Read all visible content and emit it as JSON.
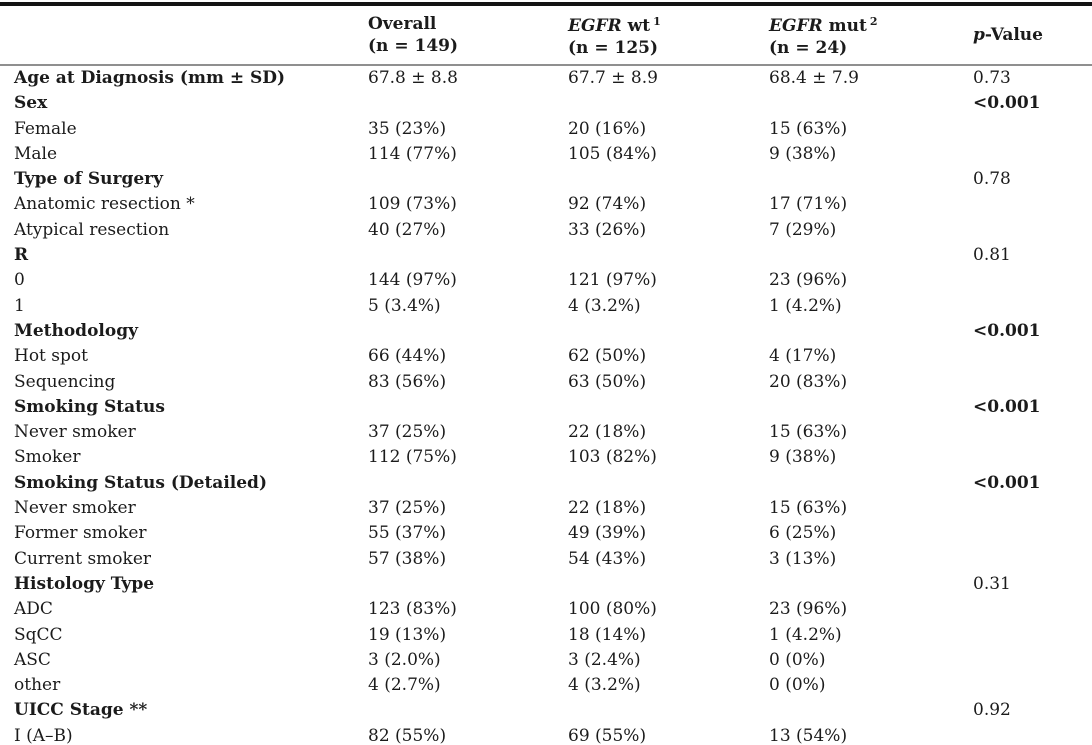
{
  "colors": {
    "text": "#1b1b1b",
    "top_rule": "#131313",
    "header_rule": "#8f8f8f",
    "background": "#ffffff"
  },
  "header": {
    "overall": {
      "line1": "Overall",
      "line2": "(n = 149)"
    },
    "egfr_wt": {
      "gene": "EGFR",
      "type": "wt",
      "sup": "1",
      "n": "(n = 125)"
    },
    "egfr_mut": {
      "gene": "EGFR",
      "type": "mut",
      "sup": "2",
      "n": "(n = 24)"
    },
    "p_value": {
      "p": "p",
      "rest": "-Value"
    }
  },
  "table": {
    "rows": [
      {
        "label": "Age at Diagnosis (mm ± SD)",
        "bold": true,
        "overall": "67.8 ± 8.8",
        "wt": "67.7 ± 8.9",
        "mut": "68.4 ± 7.9",
        "p": "0.73",
        "p_bold": false
      },
      {
        "label": "Sex",
        "bold": true,
        "overall": "",
        "wt": "",
        "mut": "",
        "p": "<0.001",
        "p_bold": true
      },
      {
        "label": "Female",
        "bold": false,
        "overall": "35 (23%)",
        "wt": "20 (16%)",
        "mut": "15 (63%)",
        "p": "",
        "p_bold": false
      },
      {
        "label": "Male",
        "bold": false,
        "overall": "114 (77%)",
        "wt": "105 (84%)",
        "mut": "9 (38%)",
        "p": "",
        "p_bold": false
      },
      {
        "label": "Type of Surgery",
        "bold": true,
        "overall": "",
        "wt": "",
        "mut": "",
        "p": "0.78",
        "p_bold": false
      },
      {
        "label": "Anatomic resection *",
        "bold": false,
        "overall": "109 (73%)",
        "wt": "92 (74%)",
        "mut": "17 (71%)",
        "p": "",
        "p_bold": false
      },
      {
        "label": "Atypical resection",
        "bold": false,
        "overall": "40 (27%)",
        "wt": "33 (26%)",
        "mut": "7 (29%)",
        "p": "",
        "p_bold": false
      },
      {
        "label": "R",
        "bold": true,
        "overall": "",
        "wt": "",
        "mut": "",
        "p": "0.81",
        "p_bold": false
      },
      {
        "label": "0",
        "bold": false,
        "overall": "144 (97%)",
        "wt": "121 (97%)",
        "mut": "23 (96%)",
        "p": "",
        "p_bold": false
      },
      {
        "label": "1",
        "bold": false,
        "overall": "5 (3.4%)",
        "wt": "4 (3.2%)",
        "mut": "1 (4.2%)",
        "p": "",
        "p_bold": false
      },
      {
        "label": "Methodology",
        "bold": true,
        "overall": "",
        "wt": "",
        "mut": "",
        "p": "<0.001",
        "p_bold": true
      },
      {
        "label": "Hot spot",
        "bold": false,
        "overall": "66 (44%)",
        "wt": "62 (50%)",
        "mut": "4 (17%)",
        "p": "",
        "p_bold": false
      },
      {
        "label": "Sequencing",
        "bold": false,
        "overall": "83 (56%)",
        "wt": "63 (50%)",
        "mut": "20 (83%)",
        "p": "",
        "p_bold": false
      },
      {
        "label": "Smoking Status",
        "bold": true,
        "overall": "",
        "wt": "",
        "mut": "",
        "p": "<0.001",
        "p_bold": true
      },
      {
        "label": "Never smoker",
        "bold": false,
        "overall": "37 (25%)",
        "wt": "22 (18%)",
        "mut": "15 (63%)",
        "p": "",
        "p_bold": false
      },
      {
        "label": "Smoker",
        "bold": false,
        "overall": "112 (75%)",
        "wt": "103 (82%)",
        "mut": "9 (38%)",
        "p": "",
        "p_bold": false
      },
      {
        "label": "Smoking Status (Detailed)",
        "bold": true,
        "overall": "",
        "wt": "",
        "mut": "",
        "p": "<0.001",
        "p_bold": true
      },
      {
        "label": "Never smoker",
        "bold": false,
        "overall": "37 (25%)",
        "wt": "22 (18%)",
        "mut": "15 (63%)",
        "p": "",
        "p_bold": false
      },
      {
        "label": "Former smoker",
        "bold": false,
        "overall": "55 (37%)",
        "wt": "49 (39%)",
        "mut": "6 (25%)",
        "p": "",
        "p_bold": false
      },
      {
        "label": "Current smoker",
        "bold": false,
        "overall": "57 (38%)",
        "wt": "54 (43%)",
        "mut": "3 (13%)",
        "p": "",
        "p_bold": false
      },
      {
        "label": "Histology Type",
        "bold": true,
        "overall": "",
        "wt": "",
        "mut": "",
        "p": "0.31",
        "p_bold": false
      },
      {
        "label": "ADC",
        "bold": false,
        "overall": "123 (83%)",
        "wt": "100 (80%)",
        "mut": "23 (96%)",
        "p": "",
        "p_bold": false
      },
      {
        "label": "SqCC",
        "bold": false,
        "overall": "19 (13%)",
        "wt": "18 (14%)",
        "mut": "1 (4.2%)",
        "p": "",
        "p_bold": false
      },
      {
        "label": "ASC",
        "bold": false,
        "overall": "3 (2.0%)",
        "wt": "3 (2.4%)",
        "mut": "0 (0%)",
        "p": "",
        "p_bold": false
      },
      {
        "label": "other",
        "bold": false,
        "overall": "4 (2.7%)",
        "wt": "4 (3.2%)",
        "mut": "0 (0%)",
        "p": "",
        "p_bold": false
      },
      {
        "label": "UICC Stage **",
        "bold": true,
        "overall": "",
        "wt": "",
        "mut": "",
        "p": "0.92",
        "p_bold": false
      },
      {
        "label": "I (A–B)",
        "bold": false,
        "overall": "82 (55%)",
        "wt": "69 (55%)",
        "mut": "13 (54%)",
        "p": "",
        "p_bold": false
      }
    ]
  }
}
